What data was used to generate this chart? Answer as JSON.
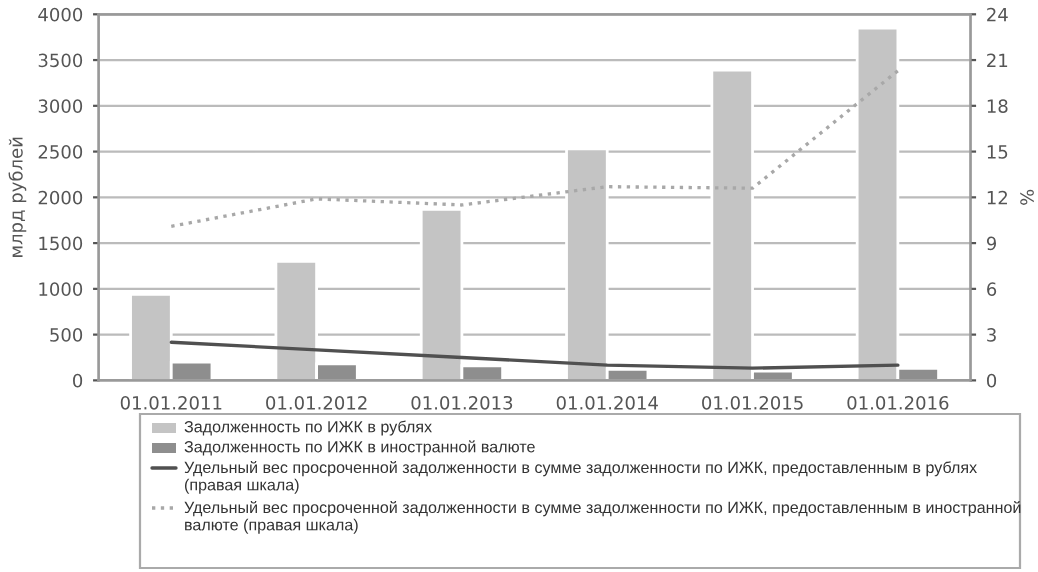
{
  "chart_data": {
    "type": "bar",
    "ylabel": "млрд рублей",
    "y2label": "%",
    "categories": [
      "01.01.2011",
      "01.01.2012",
      "01.01.2013",
      "01.01.2014",
      "01.01.2015",
      "01.01.2016"
    ],
    "series": [
      {
        "name": "Задолженность по ИЖК в рублях",
        "color": "#c4c4c4",
        "values": [
          940,
          1300,
          1870,
          2530,
          3390,
          3850
        ]
      },
      {
        "name": "Задолженность по ИЖК в иностранной валюте",
        "color": "#8e8e8e",
        "values": [
          200,
          180,
          160,
          120,
          100,
          130
        ]
      },
      {
        "type": "line",
        "axis": "y2",
        "line_style": "solid",
        "name": "Удельный вес просроченной задолженности в сумме задолженности по ИЖК, предоставленным в рублях (правая шкала)",
        "color": "#505050",
        "values": [
          2.5,
          2.0,
          1.5,
          1.0,
          0.8,
          1.0
        ]
      },
      {
        "type": "line",
        "axis": "y2",
        "line_style": "dotted",
        "name": "Удельный вес просроченной задолженности в сумме задолженности по ИЖК, предоставленным в иностранной валюте (правая шкала)",
        "color": "#a8a8a8",
        "values": [
          10.1,
          11.9,
          11.5,
          12.7,
          12.6,
          20.3
        ]
      }
    ],
    "ylim": [
      0,
      4000
    ],
    "yticks": [
      0,
      500,
      1000,
      1500,
      2000,
      2500,
      3000,
      3500,
      4000
    ],
    "y2lim": [
      0,
      24
    ],
    "y2ticks": [
      0,
      3,
      6,
      9,
      12,
      15,
      18,
      21,
      24
    ],
    "grid": "y",
    "legend": "bottom",
    "marker": "none"
  }
}
